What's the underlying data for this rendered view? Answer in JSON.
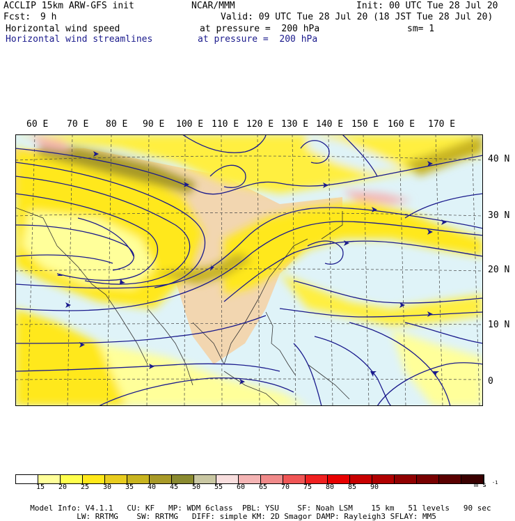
{
  "header": {
    "model": "ACCLIP 15km ARW-GFS init",
    "org": "NCAR/MMM",
    "init": "Init: 00 UTC Tue 28 Jul 20",
    "fcst_label": "Fcst:",
    "fcst_value": "9 h",
    "valid": "Valid: 09 UTC Tue 28 Jul 20 (18 JST Tue 28 Jul 20)",
    "field1": "Horizontal wind speed",
    "field1_level": "at pressure =  200 hPa",
    "sm": "sm= 1",
    "field2": "Horizontal wind streamlines",
    "field2_level": "at pressure =  200 hPa"
  },
  "axes": {
    "lon_labels": [
      "60 E",
      "70 E",
      "80 E",
      "90 E",
      "100 E",
      "110 E",
      "120 E",
      "130 E",
      "140 E",
      "150 E",
      "160 E",
      "170 E"
    ],
    "lat_labels": [
      "40 N",
      "30 N",
      "20 N",
      "10 N",
      "0"
    ]
  },
  "colorbar": {
    "colors": [
      "#ffffff",
      "#ffff9a",
      "#ffff4d",
      "#ffe81a",
      "#e8cc1f",
      "#c8b420",
      "#a89a28",
      "#8a8a30",
      "#c9c7a2",
      "#f8dede",
      "#f4b4b4",
      "#f08a8a",
      "#f05555",
      "#f02020",
      "#e80000",
      "#c80000",
      "#b00000",
      "#900000",
      "#780000",
      "#5a0000",
      "#3a0000"
    ],
    "labels": [
      "15",
      "20",
      "25",
      "30",
      "35",
      "40",
      "45",
      "50",
      "55",
      "60",
      "65",
      "70",
      "75",
      "80",
      "85",
      "90"
    ],
    "units": "m s"
  },
  "footer": {
    "line1": [
      "Model Info: V4.1.1",
      "CU: KF",
      "MP: WDM 6class",
      "PBL: YSU",
      "SF: Noah LSM",
      "15 km",
      "51 levels",
      "90 sec"
    ],
    "line2": [
      "LW: RRTMG",
      "SW: RRTMG",
      "DIFF: simple",
      "KM: 2D Smagor",
      "DAMP: Rayleigh3",
      "SFLAY: MM5"
    ]
  }
}
